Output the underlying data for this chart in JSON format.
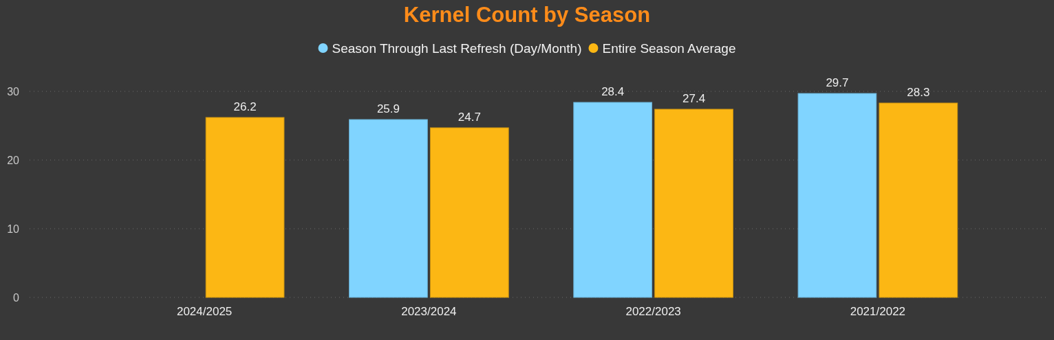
{
  "chart_data": {
    "type": "bar",
    "title": "Kernel Count by Season",
    "categories": [
      "2024/2025",
      "2023/2024",
      "2022/2023",
      "2021/2022"
    ],
    "series": [
      {
        "name": "Season Through Last Refresh (Day/Month)",
        "color": "#80d4ff",
        "values": [
          null,
          25.9,
          28.4,
          29.7
        ]
      },
      {
        "name": "Entire Season Average",
        "color": "#fcb714",
        "values": [
          26.2,
          24.7,
          27.4,
          28.3
        ]
      }
    ],
    "ylim": [
      0,
      30
    ],
    "yticks": [
      0,
      10,
      20,
      30
    ],
    "grid": "y",
    "legend": "top",
    "data_labels": true
  }
}
